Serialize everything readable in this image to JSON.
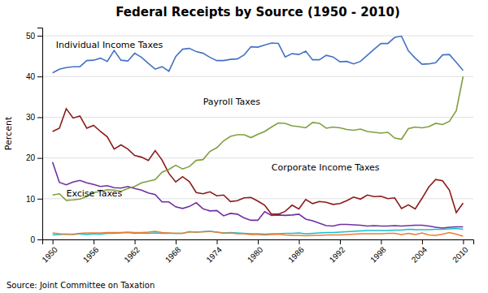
{
  "chart_data": {
    "type": "line",
    "title": "Federal Receipts by Source (1950 - 2010)",
    "y_label": "Percent",
    "source": "Source: Joint Committee on Taxation",
    "xlim": [
      1948.5,
      2011.5
    ],
    "xticks": [
      1950,
      1956,
      1962,
      1968,
      1974,
      1980,
      1986,
      1992,
      1998,
      2004,
      2010
    ],
    "ylim": [
      0,
      52
    ],
    "yticks": [
      0,
      10,
      20,
      30,
      40,
      50
    ],
    "grid": true,
    "x": [
      1950,
      1951,
      1952,
      1953,
      1954,
      1955,
      1956,
      1957,
      1958,
      1959,
      1960,
      1961,
      1962,
      1963,
      1964,
      1965,
      1966,
      1967,
      1968,
      1969,
      1970,
      1971,
      1972,
      1973,
      1974,
      1975,
      1976,
      1977,
      1978,
      1979,
      1980,
      1981,
      1982,
      1983,
      1984,
      1985,
      1986,
      1987,
      1988,
      1989,
      1990,
      1991,
      1992,
      1993,
      1994,
      1995,
      1996,
      1997,
      1998,
      1999,
      2000,
      2001,
      2002,
      2003,
      2004,
      2005,
      2006,
      2007,
      2008,
      2009,
      2010
    ],
    "series": [
      {
        "color": "#17BECF",
        "values": [
          1.1,
          1.2,
          1.3,
          1.2,
          1.4,
          1.2,
          1.4,
          1.3,
          1.5,
          1.5,
          1.6,
          1.7,
          1.5,
          1.6,
          1.5,
          1.6,
          1.5,
          1.5,
          1.5,
          1.5,
          1.9,
          1.8,
          1.9,
          2.0,
          1.8,
          1.6,
          1.7,
          1.6,
          1.5,
          1.4,
          1.4,
          1.3,
          1.4,
          1.4,
          1.5,
          1.5,
          1.6,
          1.4,
          1.5,
          1.6,
          1.7,
          1.7,
          1.8,
          1.9,
          2.0,
          2.1,
          2.2,
          2.2,
          2.2,
          2.2,
          2.3,
          2.3,
          2.5,
          2.4,
          2.4,
          2.4,
          2.5,
          2.5,
          2.6,
          2.7,
          2.5
        ]
      },
      {
        "color": "#ED7D31",
        "values": [
          1.6,
          1.4,
          1.3,
          1.3,
          1.5,
          1.6,
          1.6,
          1.6,
          1.7,
          1.7,
          1.7,
          1.8,
          1.7,
          1.7,
          1.8,
          2.0,
          1.7,
          1.6,
          1.5,
          1.5,
          1.9,
          1.8,
          1.9,
          2.0,
          1.8,
          1.5,
          1.6,
          1.4,
          1.4,
          1.2,
          1.2,
          1.1,
          1.2,
          1.3,
          1.1,
          1.0,
          1.0,
          0.9,
          1.0,
          1.0,
          1.1,
          1.1,
          1.1,
          1.2,
          1.3,
          1.4,
          1.4,
          1.4,
          1.4,
          1.5,
          1.5,
          1.2,
          1.5,
          1.2,
          1.6,
          1.1,
          1.0,
          1.3,
          1.7,
          1.3,
          0.8
        ]
      },
      {
        "color": "#7030A0",
        "values": [
          19.0,
          14.0,
          13.4,
          14.1,
          14.5,
          13.9,
          13.5,
          13.0,
          13.2,
          12.7,
          12.6,
          13.0,
          12.5,
          12.1,
          11.4,
          11.0,
          9.2,
          9.2,
          8.0,
          7.6,
          8.1,
          9.0,
          7.5,
          7.0,
          7.1,
          5.8,
          6.4,
          6.2,
          5.3,
          4.7,
          4.7,
          6.8,
          5.9,
          6.0,
          5.9,
          6.0,
          6.2,
          5.0,
          4.6,
          4.0,
          3.4,
          3.3,
          3.7,
          3.7,
          3.6,
          3.5,
          3.3,
          3.4,
          3.3,
          3.3,
          3.4,
          3.3,
          3.4,
          3.5,
          3.5,
          3.3,
          3.0,
          2.8,
          3.0,
          3.1,
          3.1
        ]
      },
      {
        "color": "#8B1A1A",
        "values": [
          26.5,
          27.3,
          32.1,
          29.8,
          30.3,
          27.3,
          28.0,
          26.5,
          25.2,
          22.2,
          23.2,
          22.2,
          20.6,
          20.2,
          19.4,
          21.8,
          19.5,
          16.2,
          14.1,
          15.4,
          14.2,
          11.5,
          11.2,
          11.7,
          10.7,
          10.9,
          9.3,
          9.5,
          10.2,
          10.3,
          9.4,
          8.4,
          6.2,
          6.2,
          6.9,
          8.4,
          7.5,
          9.8,
          8.8,
          9.3,
          9.1,
          8.6,
          8.8,
          9.5,
          10.4,
          9.9,
          10.9,
          10.5,
          10.6,
          10.0,
          10.2,
          7.6,
          8.5,
          7.5,
          10.1,
          12.9,
          14.7,
          14.4,
          12.1,
          6.6,
          8.9
        ]
      },
      {
        "color": "#7f9f3f",
        "values": [
          10.9,
          11.2,
          9.6,
          9.7,
          9.9,
          10.5,
          11.5,
          11.8,
          12.2,
          12.1,
          11.8,
          12.5,
          13.0,
          13.9,
          14.3,
          14.7,
          16.5,
          17.2,
          18.2,
          17.3,
          17.9,
          19.4,
          19.6,
          21.6,
          22.5,
          24.2,
          25.3,
          25.7,
          25.7,
          25.0,
          25.8,
          26.5,
          27.6,
          28.6,
          28.5,
          27.9,
          27.7,
          27.4,
          28.7,
          28.5,
          27.3,
          27.6,
          27.4,
          27.0,
          26.8,
          27.1,
          26.5,
          26.3,
          26.1,
          26.3,
          24.9,
          24.6,
          27.2,
          27.6,
          27.4,
          27.7,
          28.5,
          28.2,
          29.0,
          31.6,
          40.0
        ]
      },
      {
        "color": "#4472C4",
        "values": [
          40.9,
          41.8,
          42.2,
          42.4,
          42.4,
          43.9,
          44.0,
          44.5,
          43.7,
          46.4,
          44.0,
          43.8,
          45.7,
          44.7,
          43.2,
          41.8,
          42.4,
          41.3,
          44.9,
          46.7,
          46.9,
          46.1,
          45.7,
          44.7,
          43.9,
          43.9,
          44.2,
          44.3,
          45.3,
          47.3,
          47.2,
          47.7,
          48.2,
          48.1,
          44.8,
          45.6,
          45.4,
          46.2,
          44.1,
          44.1,
          45.2,
          44.8,
          43.6,
          43.7,
          43.1,
          43.7,
          45.2,
          46.7,
          48.1,
          48.1,
          49.6,
          49.9,
          46.3,
          44.5,
          43.0,
          43.1,
          43.4,
          45.3,
          45.4,
          43.5,
          41.5
        ]
      }
    ],
    "annotations": [
      {
        "text": "Individual Income Taxes",
        "x": 1950.5,
        "y": 47.0
      },
      {
        "text": "Payroll Taxes",
        "x": 1972,
        "y": 33
      },
      {
        "text": "Corporate Income Taxes",
        "x": 1982,
        "y": 17
      },
      {
        "text": "Excise Taxes",
        "x": 1952,
        "y": 10.5
      }
    ]
  }
}
